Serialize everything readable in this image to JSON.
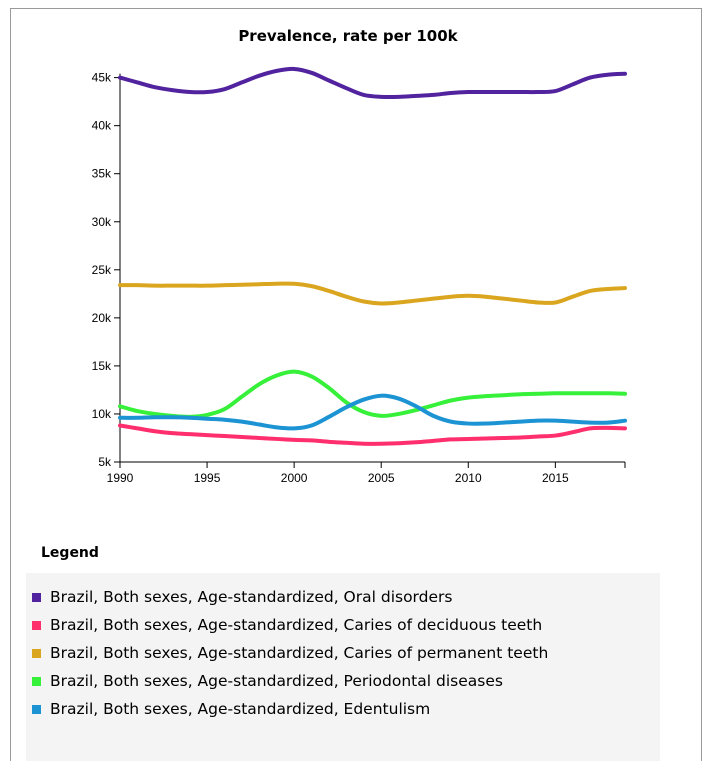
{
  "chart_data": {
    "type": "line",
    "title": "Prevalence, rate per 100k",
    "xlabel": "",
    "ylabel": "",
    "xlim": [
      1990,
      2019
    ],
    "ylim": [
      5000,
      46000
    ],
    "x_ticks": [
      1990,
      1995,
      2000,
      2005,
      2010,
      2015
    ],
    "x_tick_labels": [
      "1990",
      "1995",
      "2000",
      "2005",
      "2010",
      "2015"
    ],
    "y_ticks": [
      5000,
      10000,
      15000,
      20000,
      25000,
      30000,
      35000,
      40000,
      45000
    ],
    "y_tick_labels": [
      "5k",
      "10k",
      "15k",
      "20k",
      "25k",
      "30k",
      "35k",
      "40k",
      "45k"
    ],
    "grid": false,
    "legend_position": "bottom",
    "x": [
      1990,
      1991,
      1992,
      1993,
      1994,
      1995,
      1996,
      1997,
      1998,
      1999,
      2000,
      2001,
      2002,
      2003,
      2004,
      2005,
      2006,
      2007,
      2008,
      2009,
      2010,
      2011,
      2012,
      2013,
      2014,
      2015,
      2016,
      2017,
      2018,
      2019
    ],
    "series": [
      {
        "name": "Brazil, Both sexes, Age-standardized, Oral disorders",
        "color": "#52239e",
        "values": [
          45000,
          44500,
          44000,
          43700,
          43500,
          43500,
          43800,
          44500,
          45200,
          45700,
          45900,
          45500,
          44700,
          43900,
          43200,
          43000,
          43000,
          43100,
          43200,
          43400,
          43500,
          43500,
          43500,
          43500,
          43500,
          43600,
          44300,
          45000,
          45300,
          45400
        ]
      },
      {
        "name": "Brazil, Both sexes, Age-standardized, Caries of deciduous teeth",
        "color": "#ff2e6c",
        "values": [
          8800,
          8500,
          8200,
          8000,
          7900,
          7800,
          7700,
          7600,
          7500,
          7400,
          7300,
          7250,
          7100,
          7000,
          6900,
          6900,
          6950,
          7050,
          7200,
          7350,
          7400,
          7450,
          7500,
          7550,
          7650,
          7750,
          8100,
          8500,
          8550,
          8500
        ]
      },
      {
        "name": "Brazil, Both sexes, Age-standardized, Caries of permanent teeth",
        "color": "#dba61f",
        "values": [
          23400,
          23400,
          23350,
          23350,
          23350,
          23350,
          23400,
          23450,
          23500,
          23550,
          23550,
          23300,
          22800,
          22200,
          21700,
          21500,
          21600,
          21800,
          22000,
          22200,
          22300,
          22200,
          22000,
          21800,
          21600,
          21600,
          22200,
          22800,
          23000,
          23100
        ]
      },
      {
        "name": "Brazil, Both sexes, Age-standardized, Periodontal diseases",
        "color": "#36f03a",
        "values": [
          10800,
          10300,
          10000,
          9800,
          9700,
          9900,
          10500,
          11800,
          13100,
          14000,
          14400,
          13900,
          12700,
          11200,
          10200,
          9800,
          10000,
          10400,
          10900,
          11400,
          11700,
          11850,
          11950,
          12050,
          12100,
          12150,
          12150,
          12150,
          12150,
          12100
        ]
      },
      {
        "name": "Brazil, Both sexes, Age-standardized, Edentulism",
        "color": "#1c93d3",
        "values": [
          9600,
          9600,
          9650,
          9650,
          9600,
          9500,
          9400,
          9200,
          8900,
          8600,
          8500,
          8800,
          9700,
          10700,
          11500,
          11900,
          11600,
          10800,
          9800,
          9200,
          9000,
          9000,
          9100,
          9200,
          9300,
          9300,
          9200,
          9100,
          9100,
          9300
        ]
      }
    ]
  }
}
